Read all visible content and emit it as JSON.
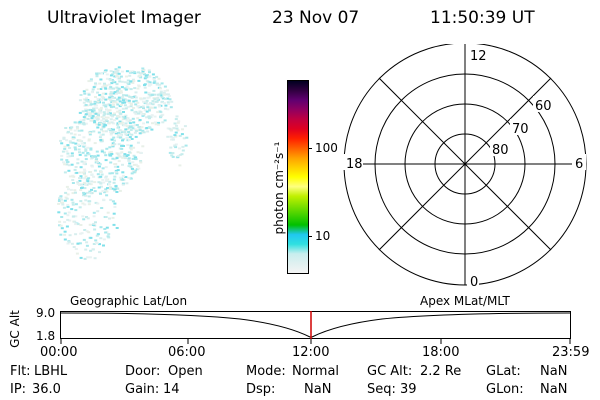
{
  "header": {
    "instrument": "Ultraviolet Imager",
    "date": "23 Nov 07",
    "time": "11:50:39 UT"
  },
  "colorbar": {
    "label": "photon cm⁻²s⁻¹",
    "ticks": [
      "100",
      "10"
    ],
    "colors": [
      "#f4f4f4",
      "#e0f0f0",
      "#c8eeee",
      "#30e0e0",
      "#20c8f0",
      "#00c000",
      "#40d000",
      "#80e000",
      "#c0f000",
      "#ffff80",
      "#ffff00",
      "#ffd000",
      "#ffa000",
      "#ff6000",
      "#ff2000",
      "#e00020",
      "#c00040",
      "#900060",
      "#600070",
      "#300040",
      "#000020"
    ]
  },
  "polar_plot": {
    "mlt_labels": {
      "top": "12",
      "left": "18",
      "right": "6",
      "bottom": "0"
    },
    "lat_labels": [
      "60",
      "70",
      "80"
    ]
  },
  "timeline": {
    "left_title": "Geographic Lat/Lon",
    "right_title": "Apex MLat/MLT",
    "y_axis_label": "GC Alt",
    "y_ticks": [
      "9.0",
      "1.8"
    ],
    "x_ticks": [
      "00:00",
      "06:00",
      "12:00",
      "18:00",
      "23:59"
    ],
    "marker_color": "#d00000"
  },
  "status": {
    "row1": [
      {
        "label": "Flt:",
        "value": "LBHL"
      },
      {
        "label": "Door:",
        "value": "Open"
      },
      {
        "label": "Mode:",
        "value": "Normal"
      },
      {
        "label": "GC Alt:",
        "value": "2.2 Re"
      },
      {
        "label": "GLat:",
        "value": "NaN"
      }
    ],
    "row2": [
      {
        "label": "IP:",
        "value": "36.0"
      },
      {
        "label": "Gain:",
        "value": "14"
      },
      {
        "label": "Dsp:",
        "value": "NaN"
      },
      {
        "label": "Seq:",
        "value": "39"
      },
      {
        "label": "GLon:",
        "value": "NaN"
      }
    ]
  }
}
